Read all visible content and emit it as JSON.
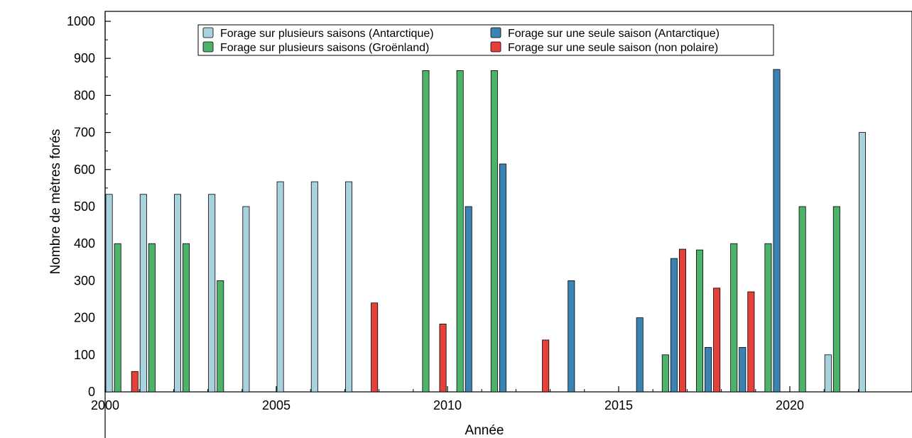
{
  "chart_data": {
    "type": "bar",
    "xlabel": "Année",
    "ylabel": "Nombre de mètres forés",
    "xlim": [
      2000,
      2022
    ],
    "ylim": [
      0,
      1000
    ],
    "x_ticks": [
      "2000",
      "2005",
      "2010",
      "2015",
      "2020"
    ],
    "y_ticks": [
      "0",
      "100",
      "200",
      "300",
      "400",
      "500",
      "600",
      "700",
      "800",
      "900",
      "1000"
    ],
    "grid": false,
    "legend_position": "top-center",
    "series": [
      {
        "name": "Forage sur plusieurs saisons (Antarctique)",
        "color": "#a9d2df",
        "points": [
          {
            "x": 2000.0,
            "y": 533
          },
          {
            "x": 2001.0,
            "y": 533
          },
          {
            "x": 2002.0,
            "y": 533
          },
          {
            "x": 2003.0,
            "y": 533
          },
          {
            "x": 2004.0,
            "y": 500
          },
          {
            "x": 2005.0,
            "y": 567
          },
          {
            "x": 2006.0,
            "y": 567
          },
          {
            "x": 2007.0,
            "y": 567
          },
          {
            "x": 2021.0,
            "y": 100
          },
          {
            "x": 2022.0,
            "y": 700
          }
        ]
      },
      {
        "name": "Forage sur plusieurs saisons (Groënland)",
        "color": "#4db36a",
        "points": [
          {
            "x": 2000.25,
            "y": 400
          },
          {
            "x": 2001.25,
            "y": 400
          },
          {
            "x": 2002.25,
            "y": 400
          },
          {
            "x": 2003.25,
            "y": 300
          },
          {
            "x": 2009.25,
            "y": 867
          },
          {
            "x": 2010.25,
            "y": 867
          },
          {
            "x": 2011.25,
            "y": 867
          },
          {
            "x": 2016.25,
            "y": 100
          },
          {
            "x": 2017.25,
            "y": 383
          },
          {
            "x": 2018.25,
            "y": 400
          },
          {
            "x": 2019.25,
            "y": 400
          },
          {
            "x": 2020.25,
            "y": 500
          },
          {
            "x": 2021.25,
            "y": 500
          }
        ]
      },
      {
        "name": "Forage sur une seule saison (Antarctique)",
        "color": "#3b83b3",
        "points": [
          {
            "x": 2010.5,
            "y": 500
          },
          {
            "x": 2011.5,
            "y": 615
          },
          {
            "x": 2013.5,
            "y": 300
          },
          {
            "x": 2015.5,
            "y": 200
          },
          {
            "x": 2016.5,
            "y": 360
          },
          {
            "x": 2017.5,
            "y": 120
          },
          {
            "x": 2018.5,
            "y": 120
          },
          {
            "x": 2019.5,
            "y": 870
          }
        ]
      },
      {
        "name": "Forage sur une seule saison (non polaire)",
        "color": "#e5413a",
        "points": [
          {
            "x": 2000.75,
            "y": 55
          },
          {
            "x": 2007.75,
            "y": 240
          },
          {
            "x": 2009.75,
            "y": 183
          },
          {
            "x": 2012.75,
            "y": 140
          },
          {
            "x": 2016.75,
            "y": 385
          },
          {
            "x": 2017.75,
            "y": 280
          },
          {
            "x": 2018.75,
            "y": 270
          }
        ]
      }
    ]
  }
}
